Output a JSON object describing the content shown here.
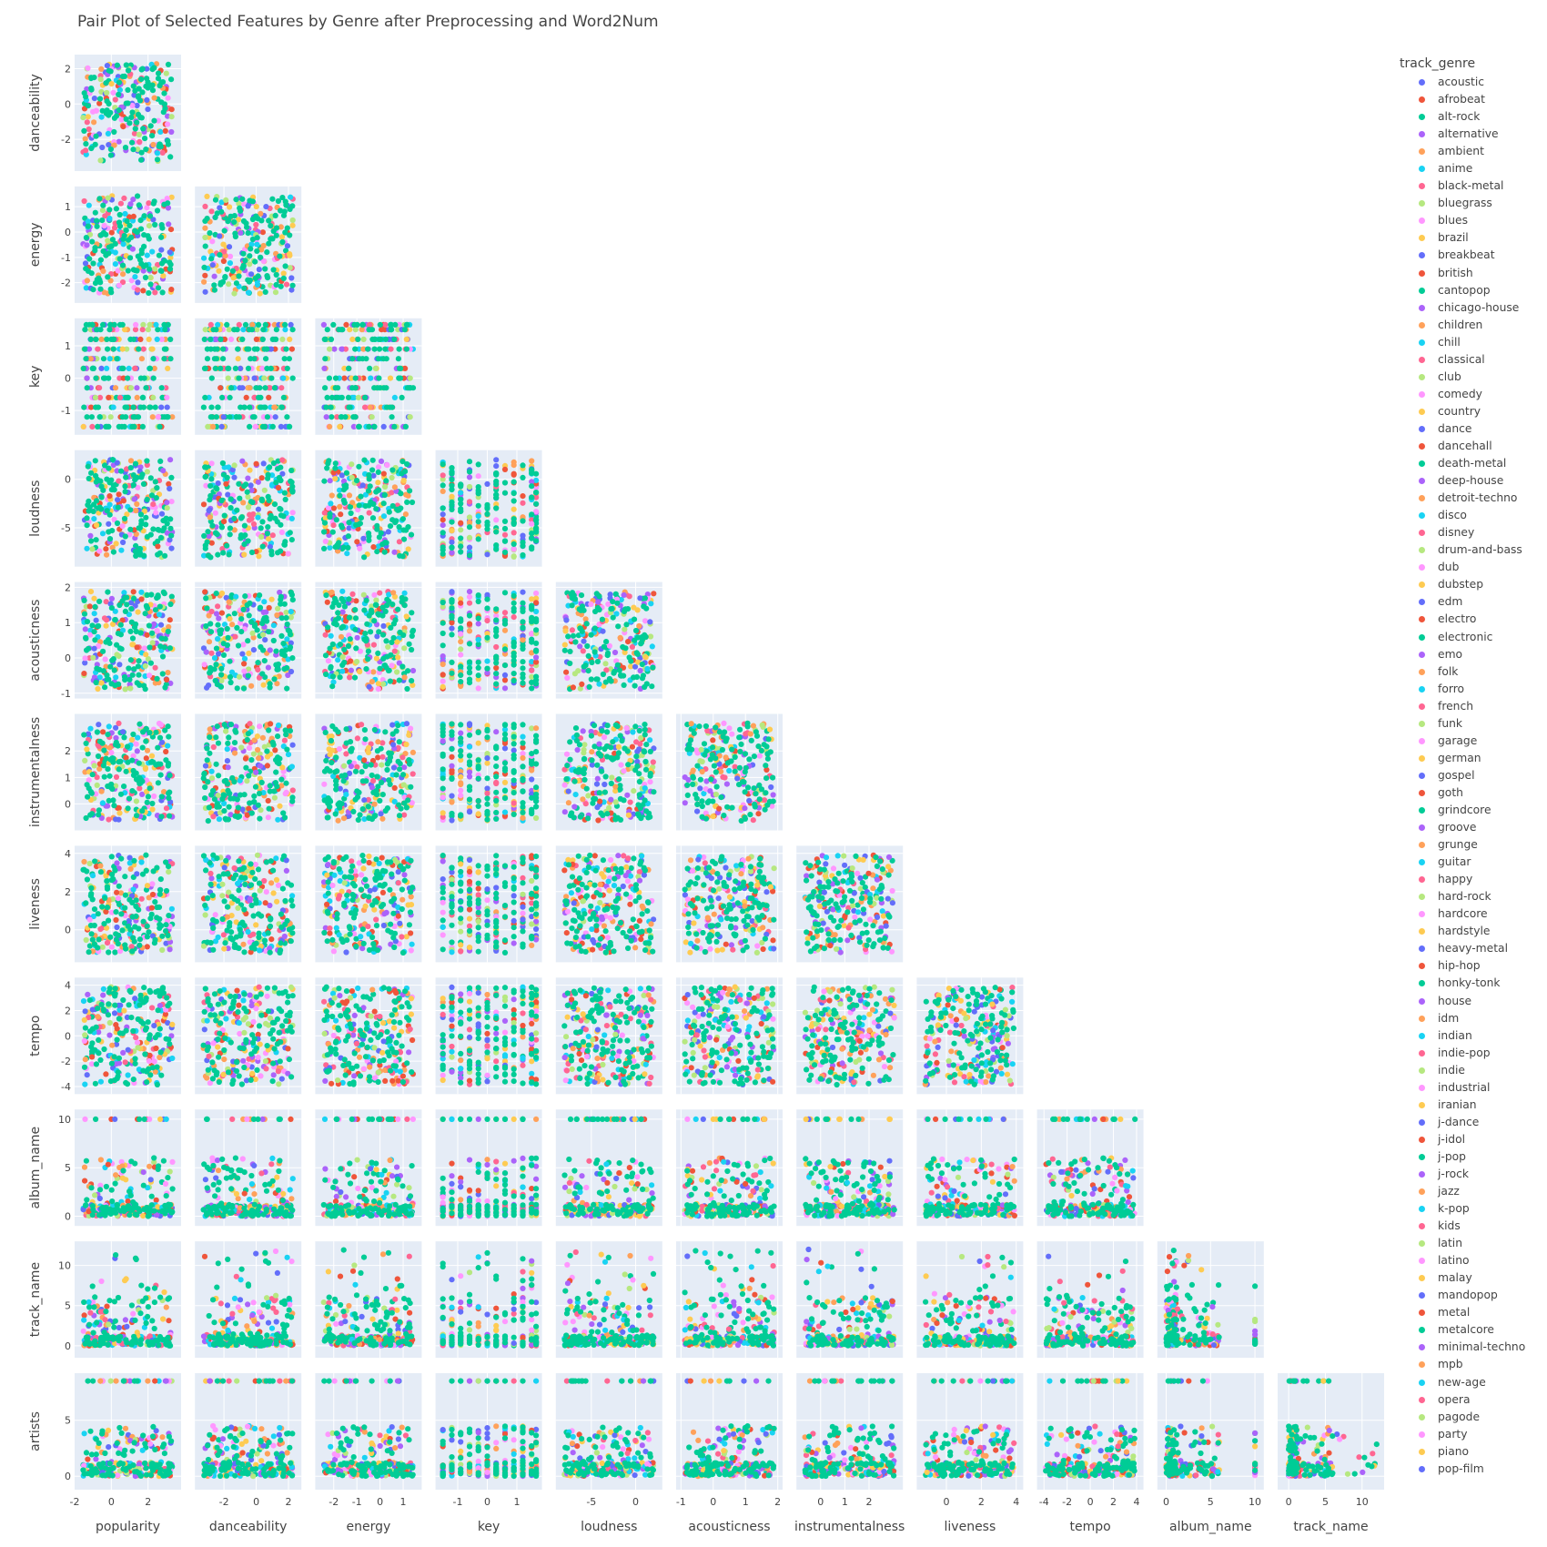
{
  "title": "Pair Plot of Selected Features by Genre after Preprocessing and Word2Num",
  "chart_data": {
    "type": "scatter",
    "subtype": "pair-plot-lower-triangle",
    "dimensions": [
      {
        "name": "popularity",
        "range": [
          -2,
          3.8
        ],
        "ticks": [
          -2,
          0,
          2
        ],
        "x_ticks": true,
        "y_ticks": false
      },
      {
        "name": "danceability",
        "range": [
          -3.8,
          2.8
        ],
        "ticks": [
          -2,
          0,
          2
        ]
      },
      {
        "name": "energy",
        "range": [
          -2.8,
          1.8
        ],
        "ticks": [
          -2,
          -1,
          0,
          1
        ]
      },
      {
        "name": "key",
        "range": [
          -1.75,
          1.85
        ],
        "ticks": [
          -1,
          0,
          1
        ]
      },
      {
        "name": "loudness",
        "range": [
          -9,
          3
        ],
        "ticks": [
          -5,
          0
        ]
      },
      {
        "name": "acousticness",
        "range": [
          -1.15,
          2.15
        ],
        "ticks": [
          -1,
          0,
          1,
          2
        ]
      },
      {
        "name": "instrumentalness",
        "range": [
          -1,
          3.4
        ],
        "ticks": [
          0,
          1,
          2
        ]
      },
      {
        "name": "liveness",
        "range": [
          -1.7,
          4.4
        ],
        "ticks": [
          0,
          2,
          4
        ]
      },
      {
        "name": "tempo",
        "range": [
          -4.6,
          4.6
        ],
        "ticks": [
          -4,
          -2,
          0,
          2,
          4
        ]
      },
      {
        "name": "album_name",
        "range": [
          -1,
          11
        ],
        "ticks": [
          0,
          5,
          10
        ]
      },
      {
        "name": "track_name",
        "range": [
          -1.5,
          13
        ],
        "ticks": [
          0,
          5,
          10
        ]
      },
      {
        "name": "artists",
        "range": [
          -1.2,
          9.2
        ],
        "ticks": [
          0,
          5
        ]
      }
    ],
    "legend": {
      "title": "track_genre",
      "placement": "right",
      "entries": [
        {
          "name": "acoustic",
          "color": "#636efa"
        },
        {
          "name": "afrobeat",
          "color": "#EF553B"
        },
        {
          "name": "alt-rock",
          "color": "#00cc96"
        },
        {
          "name": "alternative",
          "color": "#ab63fa"
        },
        {
          "name": "ambient",
          "color": "#FFA15A"
        },
        {
          "name": "anime",
          "color": "#19d3f3"
        },
        {
          "name": "black-metal",
          "color": "#FF6692"
        },
        {
          "name": "bluegrass",
          "color": "#B6E880"
        },
        {
          "name": "blues",
          "color": "#FF97FF"
        },
        {
          "name": "brazil",
          "color": "#FECB52"
        },
        {
          "name": "breakbeat",
          "color": "#636efa"
        },
        {
          "name": "british",
          "color": "#EF553B"
        },
        {
          "name": "cantopop",
          "color": "#00cc96"
        },
        {
          "name": "chicago-house",
          "color": "#ab63fa"
        },
        {
          "name": "children",
          "color": "#FFA15A"
        },
        {
          "name": "chill",
          "color": "#19d3f3"
        },
        {
          "name": "classical",
          "color": "#FF6692"
        },
        {
          "name": "club",
          "color": "#B6E880"
        },
        {
          "name": "comedy",
          "color": "#FF97FF"
        },
        {
          "name": "country",
          "color": "#FECB52"
        },
        {
          "name": "dance",
          "color": "#636efa"
        },
        {
          "name": "dancehall",
          "color": "#EF553B"
        },
        {
          "name": "death-metal",
          "color": "#00cc96"
        },
        {
          "name": "deep-house",
          "color": "#ab63fa"
        },
        {
          "name": "detroit-techno",
          "color": "#FFA15A"
        },
        {
          "name": "disco",
          "color": "#19d3f3"
        },
        {
          "name": "disney",
          "color": "#FF6692"
        },
        {
          "name": "drum-and-bass",
          "color": "#B6E880"
        },
        {
          "name": "dub",
          "color": "#FF97FF"
        },
        {
          "name": "dubstep",
          "color": "#FECB52"
        },
        {
          "name": "edm",
          "color": "#636efa"
        },
        {
          "name": "electro",
          "color": "#EF553B"
        },
        {
          "name": "electronic",
          "color": "#00cc96"
        },
        {
          "name": "emo",
          "color": "#ab63fa"
        },
        {
          "name": "folk",
          "color": "#FFA15A"
        },
        {
          "name": "forro",
          "color": "#19d3f3"
        },
        {
          "name": "french",
          "color": "#FF6692"
        },
        {
          "name": "funk",
          "color": "#B6E880"
        },
        {
          "name": "garage",
          "color": "#FF97FF"
        },
        {
          "name": "german",
          "color": "#FECB52"
        },
        {
          "name": "gospel",
          "color": "#636efa"
        },
        {
          "name": "goth",
          "color": "#EF553B"
        },
        {
          "name": "grindcore",
          "color": "#00cc96"
        },
        {
          "name": "groove",
          "color": "#ab63fa"
        },
        {
          "name": "grunge",
          "color": "#FFA15A"
        },
        {
          "name": "guitar",
          "color": "#19d3f3"
        },
        {
          "name": "happy",
          "color": "#FF6692"
        },
        {
          "name": "hard-rock",
          "color": "#B6E880"
        },
        {
          "name": "hardcore",
          "color": "#FF97FF"
        },
        {
          "name": "hardstyle",
          "color": "#FECB52"
        },
        {
          "name": "heavy-metal",
          "color": "#636efa"
        },
        {
          "name": "hip-hop",
          "color": "#EF553B"
        },
        {
          "name": "honky-tonk",
          "color": "#00cc96"
        },
        {
          "name": "house",
          "color": "#ab63fa"
        },
        {
          "name": "idm",
          "color": "#FFA15A"
        },
        {
          "name": "indian",
          "color": "#19d3f3"
        },
        {
          "name": "indie-pop",
          "color": "#FF6692"
        },
        {
          "name": "indie",
          "color": "#B6E880"
        },
        {
          "name": "industrial",
          "color": "#FF97FF"
        },
        {
          "name": "iranian",
          "color": "#FECB52"
        },
        {
          "name": "j-dance",
          "color": "#636efa"
        },
        {
          "name": "j-idol",
          "color": "#EF553B"
        },
        {
          "name": "j-pop",
          "color": "#00cc96"
        },
        {
          "name": "j-rock",
          "color": "#ab63fa"
        },
        {
          "name": "jazz",
          "color": "#FFA15A"
        },
        {
          "name": "k-pop",
          "color": "#19d3f3"
        },
        {
          "name": "kids",
          "color": "#FF6692"
        },
        {
          "name": "latin",
          "color": "#B6E880"
        },
        {
          "name": "latino",
          "color": "#FF97FF"
        },
        {
          "name": "malay",
          "color": "#FECB52"
        },
        {
          "name": "mandopop",
          "color": "#636efa"
        },
        {
          "name": "metal",
          "color": "#EF553B"
        },
        {
          "name": "metalcore",
          "color": "#00cc96"
        },
        {
          "name": "minimal-techno",
          "color": "#ab63fa"
        },
        {
          "name": "mpb",
          "color": "#FFA15A"
        },
        {
          "name": "new-age",
          "color": "#19d3f3"
        },
        {
          "name": "opera",
          "color": "#FF6692"
        },
        {
          "name": "pagode",
          "color": "#B6E880"
        },
        {
          "name": "party",
          "color": "#FF97FF"
        },
        {
          "name": "piano",
          "color": "#FECB52"
        },
        {
          "name": "pop-film",
          "color": "#636efa"
        }
      ]
    },
    "grid": true,
    "panel_background": "#e5ecf6"
  }
}
